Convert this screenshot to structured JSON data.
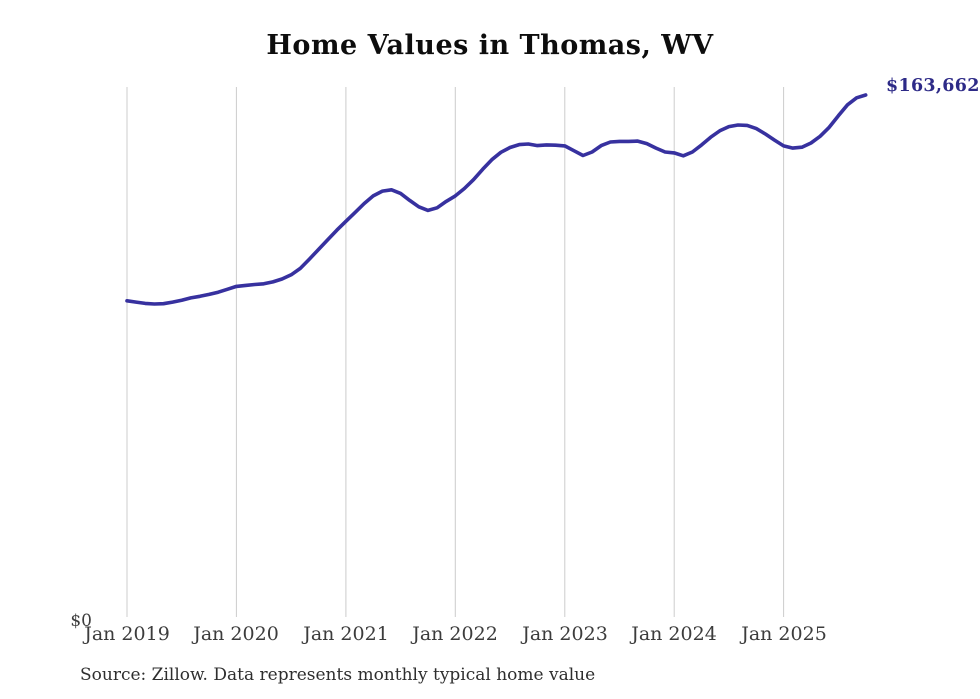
{
  "page": {
    "background_color": "#ffffff"
  },
  "chart": {
    "title": "Home Values in Thomas, WV",
    "y_zero_label": "$0",
    "end_label": "$163,662",
    "line_color": "#37319f",
    "end_label_color": "#2d2a87",
    "gridline_color": "#cccccc",
    "tick_label_color": "#3c3c3c"
  },
  "source_note": "Source: Zillow. Data represents monthly typical home value",
  "chart_data": {
    "type": "line",
    "title": "Home Values in Thomas, WV",
    "series_name": "Monthly typical home value (Zillow)",
    "x_tick_labels": [
      "Jan 2019",
      "Jan 2020",
      "Jan 2021",
      "Jan 2022",
      "Jan 2023",
      "Jan 2024",
      "Jan 2025"
    ],
    "x_tick_month_indices": [
      0,
      12,
      24,
      36,
      48,
      60,
      72
    ],
    "y_axis_labels": [
      "$0"
    ],
    "ylim": [
      0,
      170000
    ],
    "grid": "vertical-yearly-only",
    "legend": "none",
    "end_annotation": "$163,662",
    "months": [
      "2019-01",
      "2019-02",
      "2019-03",
      "2019-04",
      "2019-05",
      "2019-06",
      "2019-07",
      "2019-08",
      "2019-09",
      "2019-10",
      "2019-11",
      "2019-12",
      "2020-01",
      "2020-02",
      "2020-03",
      "2020-04",
      "2020-05",
      "2020-06",
      "2020-07",
      "2020-08",
      "2020-09",
      "2020-10",
      "2020-11",
      "2020-12",
      "2021-01",
      "2021-02",
      "2021-03",
      "2021-04",
      "2021-05",
      "2021-06",
      "2021-07",
      "2021-08",
      "2021-09",
      "2021-10",
      "2021-11",
      "2021-12",
      "2022-01",
      "2022-02",
      "2022-03",
      "2022-04",
      "2022-05",
      "2022-06",
      "2022-07",
      "2022-08",
      "2022-09",
      "2022-10",
      "2022-11",
      "2022-12",
      "2023-01",
      "2023-02",
      "2023-03",
      "2023-04",
      "2023-05",
      "2023-06",
      "2023-07",
      "2023-08",
      "2023-09",
      "2023-10",
      "2023-11",
      "2023-12",
      "2024-01",
      "2024-02",
      "2024-03",
      "2024-04",
      "2024-05",
      "2024-06",
      "2024-07",
      "2024-08",
      "2024-09",
      "2024-10",
      "2024-11",
      "2024-12",
      "2025-01",
      "2025-02",
      "2025-03",
      "2025-04",
      "2025-05",
      "2025-06",
      "2025-07",
      "2025-08",
      "2025-09",
      "2025-10"
    ],
    "values": [
      99500,
      99100,
      98700,
      98500,
      98600,
      99100,
      99700,
      100400,
      100900,
      101500,
      102200,
      103100,
      104000,
      104300,
      104600,
      104800,
      105400,
      106300,
      107600,
      109600,
      112500,
      115500,
      118500,
      121500,
      124300,
      127000,
      129800,
      132200,
      133700,
      134100,
      133000,
      130800,
      128800,
      127700,
      128500,
      130500,
      132200,
      134500,
      137300,
      140500,
      143500,
      145800,
      147300,
      148200,
      148400,
      147900,
      148100,
      148000,
      147800,
      146300,
      144800,
      145900,
      147900,
      149000,
      149200,
      149200,
      149300,
      148500,
      147100,
      145900,
      145600,
      144700,
      145900,
      148100,
      150500,
      152500,
      153800,
      154300,
      154200,
      153200,
      151500,
      149600,
      147800,
      147100,
      147400,
      148700,
      150800,
      153600,
      157200,
      160600,
      162800,
      163662
    ],
    "last_value": 163662
  }
}
